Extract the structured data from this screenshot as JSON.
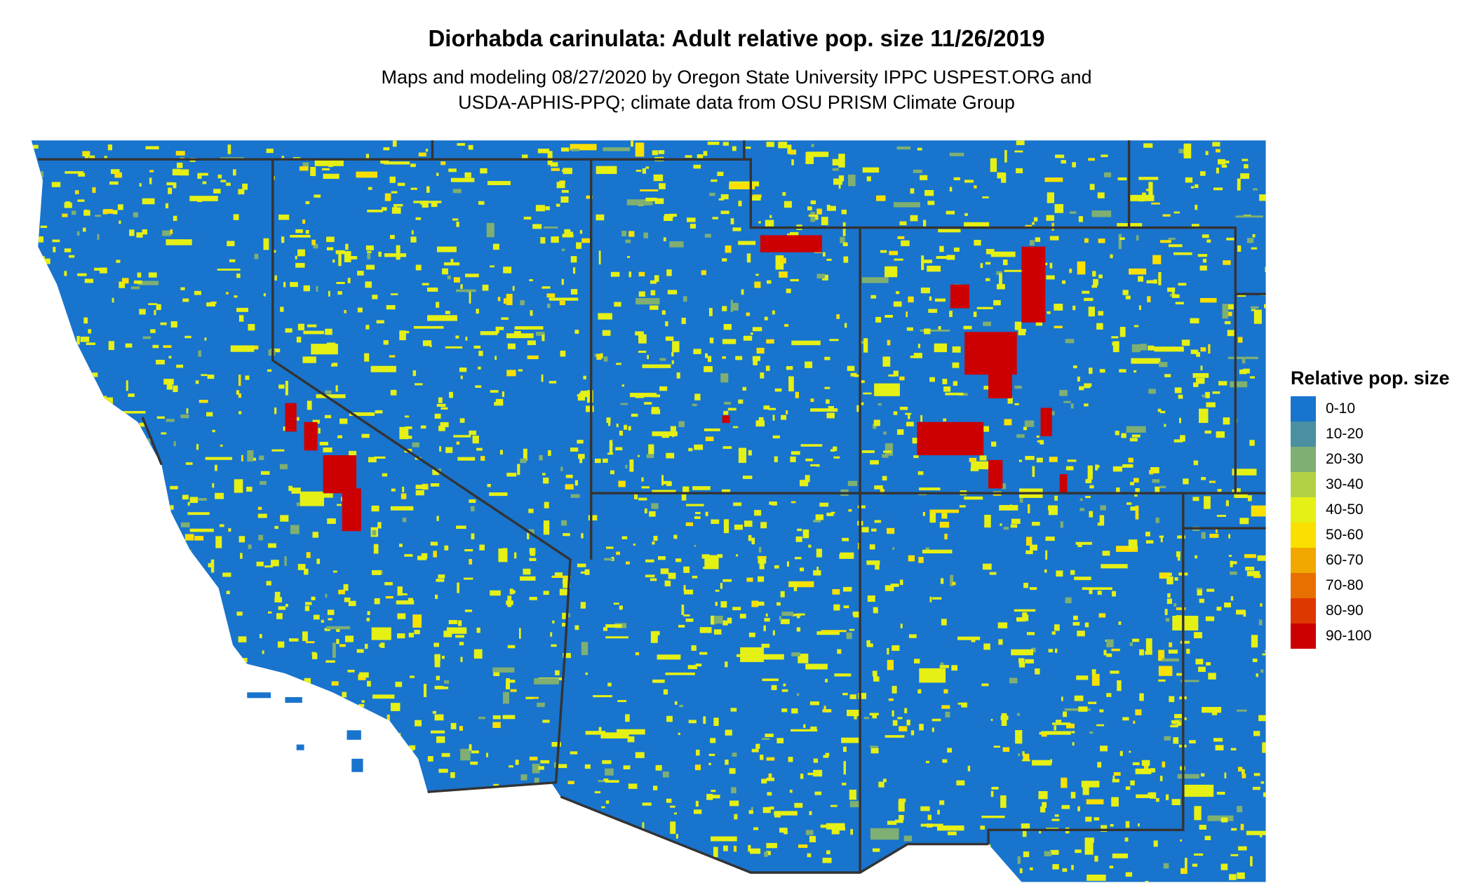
{
  "title": "Diorhabda carinulata: Adult relative pop. size 11/26/2019",
  "subtitle_line1": "Maps and modeling 08/27/2020 by Oregon State University IPPC USPEST.ORG and",
  "subtitle_line2": "USDA-APHIS-PPQ; climate data from OSU PRISM Climate Group",
  "legend": {
    "title": "Relative pop. size",
    "items": [
      {
        "label": "0-10",
        "color": "#1874CD"
      },
      {
        "label": "10-20",
        "color": "#4A90A0"
      },
      {
        "label": "20-30",
        "color": "#7FAF72"
      },
      {
        "label": "30-40",
        "color": "#B3D145"
      },
      {
        "label": "40-50",
        "color": "#E5F015"
      },
      {
        "label": "50-60",
        "color": "#F9E000"
      },
      {
        "label": "60-70",
        "color": "#F0A800"
      },
      {
        "label": "70-80",
        "color": "#E87000"
      },
      {
        "label": "80-90",
        "color": "#DD3800"
      },
      {
        "label": "90-100",
        "color": "#CC0000"
      }
    ]
  },
  "border_color": "#333333"
}
